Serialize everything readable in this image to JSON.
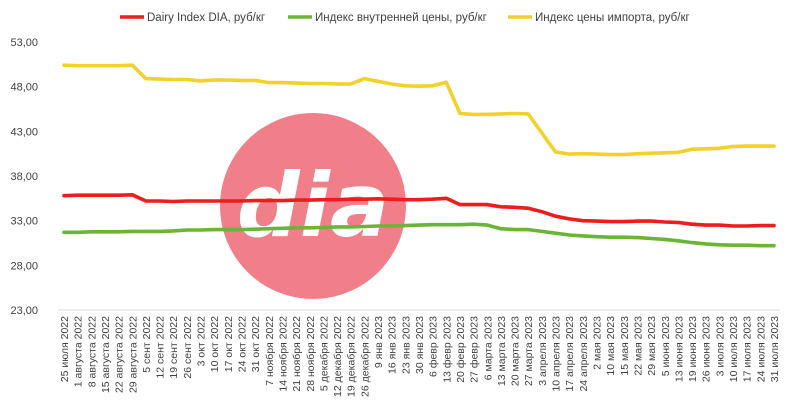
{
  "chart_data": {
    "type": "line",
    "title": "",
    "xlabel": "",
    "ylabel": "",
    "ylim": [
      23,
      53
    ],
    "yticks": [
      "23,00",
      "28,00",
      "33,00",
      "38,00",
      "43,00",
      "48,00",
      "53,00"
    ],
    "grid": false,
    "legend_position": "top",
    "watermark_text": "dia",
    "x": [
      "25 июля 2022",
      "1 августа 2022",
      "8 августа 2022",
      "15 августа 2022",
      "22 августа 2022",
      "29 августа 2022",
      "5 сент 2022",
      "12 сент 2022",
      "19 сент 2022",
      "26 сент 2022",
      "3 окт 2022",
      "10 окт 2022",
      "17 окт 2022",
      "24 окт 2022",
      "31 окт 2022",
      "7 ноября 2022",
      "14 ноября 2022",
      "21 ноября 2022",
      "28 ноября 2022",
      "5 декабря 2022",
      "12 декабря 2022",
      "19 декабря 2022",
      "26 декабря 2022",
      "9 янв 2023",
      "16 янв 2023",
      "23 янв 2023",
      "30 янв 2023",
      "6 февр 2023",
      "13 февр 2023",
      "20 февр 2023",
      "27 февр 2023",
      "6 марта 2023",
      "13 марта 2023",
      "20 марта 2023",
      "27 марта 2023",
      "3 апреля 2023",
      "10 апреля 2023",
      "17 апреля 2023",
      "24 апреля 2023",
      "2 мая 2023",
      "10 мая 2023",
      "15 мая 2023",
      "22 мая 2023",
      "29 мая 2023",
      "5 июня 2023",
      "13 июня 2023",
      "19 июня 2023",
      "26 июня 2023",
      "3 июля 2023",
      "10 июля 2023",
      "17 июля 2023",
      "24 июля 2023",
      "31 июля 2023"
    ],
    "series": [
      {
        "name": "Dairy Index DIA,  руб/кг",
        "color": "#ee1c1c",
        "values": [
          35.8,
          35.85,
          35.85,
          35.85,
          35.85,
          35.9,
          35.2,
          35.2,
          35.15,
          35.2,
          35.2,
          35.2,
          35.2,
          35.2,
          35.25,
          35.25,
          35.25,
          35.3,
          35.3,
          35.35,
          35.35,
          35.4,
          35.4,
          35.45,
          35.4,
          35.35,
          35.35,
          35.4,
          35.5,
          34.8,
          34.8,
          34.8,
          34.55,
          34.5,
          34.4,
          34.0,
          33.5,
          33.2,
          33.0,
          32.95,
          32.9,
          32.9,
          32.95,
          32.95,
          32.85,
          32.8,
          32.6,
          32.5,
          32.5,
          32.4,
          32.4,
          32.45,
          32.45
        ]
      },
      {
        "name": "Индекс внутренней цены, руб/кг",
        "color": "#6bb535",
        "values": [
          31.7,
          31.7,
          31.75,
          31.75,
          31.75,
          31.8,
          31.8,
          31.8,
          31.85,
          31.95,
          31.95,
          32.0,
          32.0,
          32.0,
          32.05,
          32.1,
          32.15,
          32.2,
          32.2,
          32.25,
          32.3,
          32.3,
          32.35,
          32.4,
          32.4,
          32.45,
          32.5,
          32.55,
          32.55,
          32.55,
          32.6,
          32.5,
          32.1,
          32.0,
          32.0,
          31.8,
          31.6,
          31.4,
          31.3,
          31.2,
          31.15,
          31.15,
          31.1,
          31.0,
          30.9,
          30.75,
          30.55,
          30.4,
          30.3,
          30.25,
          30.25,
          30.2,
          30.2
        ]
      },
      {
        "name": "Индекс цены импорта, руб/кг",
        "color": "#f2d12b",
        "values": [
          50.4,
          50.35,
          50.35,
          50.35,
          50.35,
          50.4,
          48.9,
          48.85,
          48.8,
          48.8,
          48.65,
          48.75,
          48.75,
          48.7,
          48.7,
          48.45,
          48.45,
          48.4,
          48.35,
          48.35,
          48.3,
          48.3,
          48.9,
          48.6,
          48.3,
          48.1,
          48.05,
          48.1,
          48.5,
          45.0,
          44.9,
          44.9,
          44.95,
          45.0,
          44.95,
          42.8,
          40.7,
          40.45,
          40.5,
          40.45,
          40.4,
          40.4,
          40.5,
          40.55,
          40.6,
          40.65,
          41.0,
          41.05,
          41.1,
          41.3,
          41.35,
          41.35,
          41.35
        ]
      }
    ]
  },
  "colors": {
    "watermark_circle": "#f07f89",
    "watermark_text": "#ffffff",
    "axis": "#d9d9d9",
    "tick_text": "#404040"
  }
}
